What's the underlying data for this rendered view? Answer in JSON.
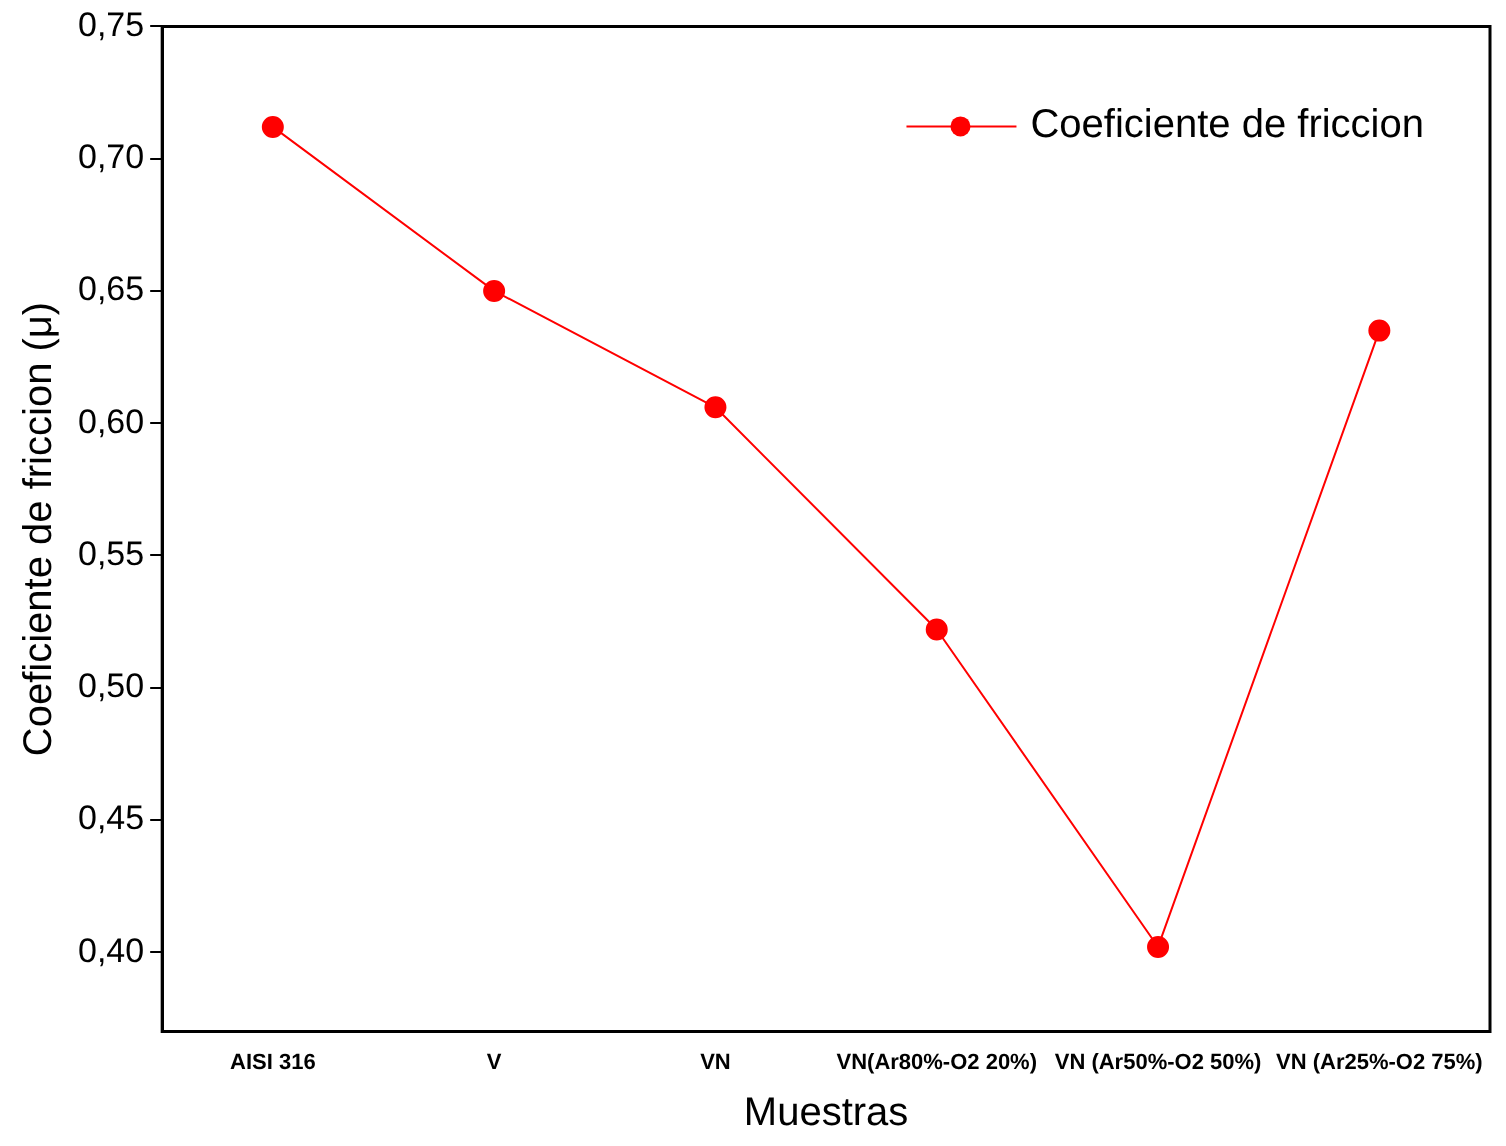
{
  "chart_data": {
    "type": "line",
    "xlabel": "Muestras",
    "ylabel": "Coeficiente de friccion (μ)",
    "categories": [
      "AISI 316",
      "V",
      "VN",
      "VN(Ar80%-O2 20%)",
      "VN (Ar50%-O2 50%)",
      "VN (Ar25%-O2 75%)"
    ],
    "series": [
      {
        "name": "Coeficiente de friccion",
        "color": "#ff0000",
        "values": [
          0.712,
          0.65,
          0.606,
          0.522,
          0.402,
          0.635
        ]
      }
    ],
    "ylim": [
      0.37,
      0.75
    ],
    "yticks": [
      {
        "value": 0.4,
        "label": "0,40"
      },
      {
        "value": 0.45,
        "label": "0,45"
      },
      {
        "value": 0.5,
        "label": "0,50"
      },
      {
        "value": 0.55,
        "label": "0,55"
      },
      {
        "value": 0.6,
        "label": "0,60"
      },
      {
        "value": 0.65,
        "label": "0,65"
      },
      {
        "value": 0.7,
        "label": "0,70"
      },
      {
        "value": 0.75,
        "label": "0,75"
      }
    ],
    "grid": false,
    "legend": "top right",
    "marker": "circle",
    "line_style": "solid"
  }
}
